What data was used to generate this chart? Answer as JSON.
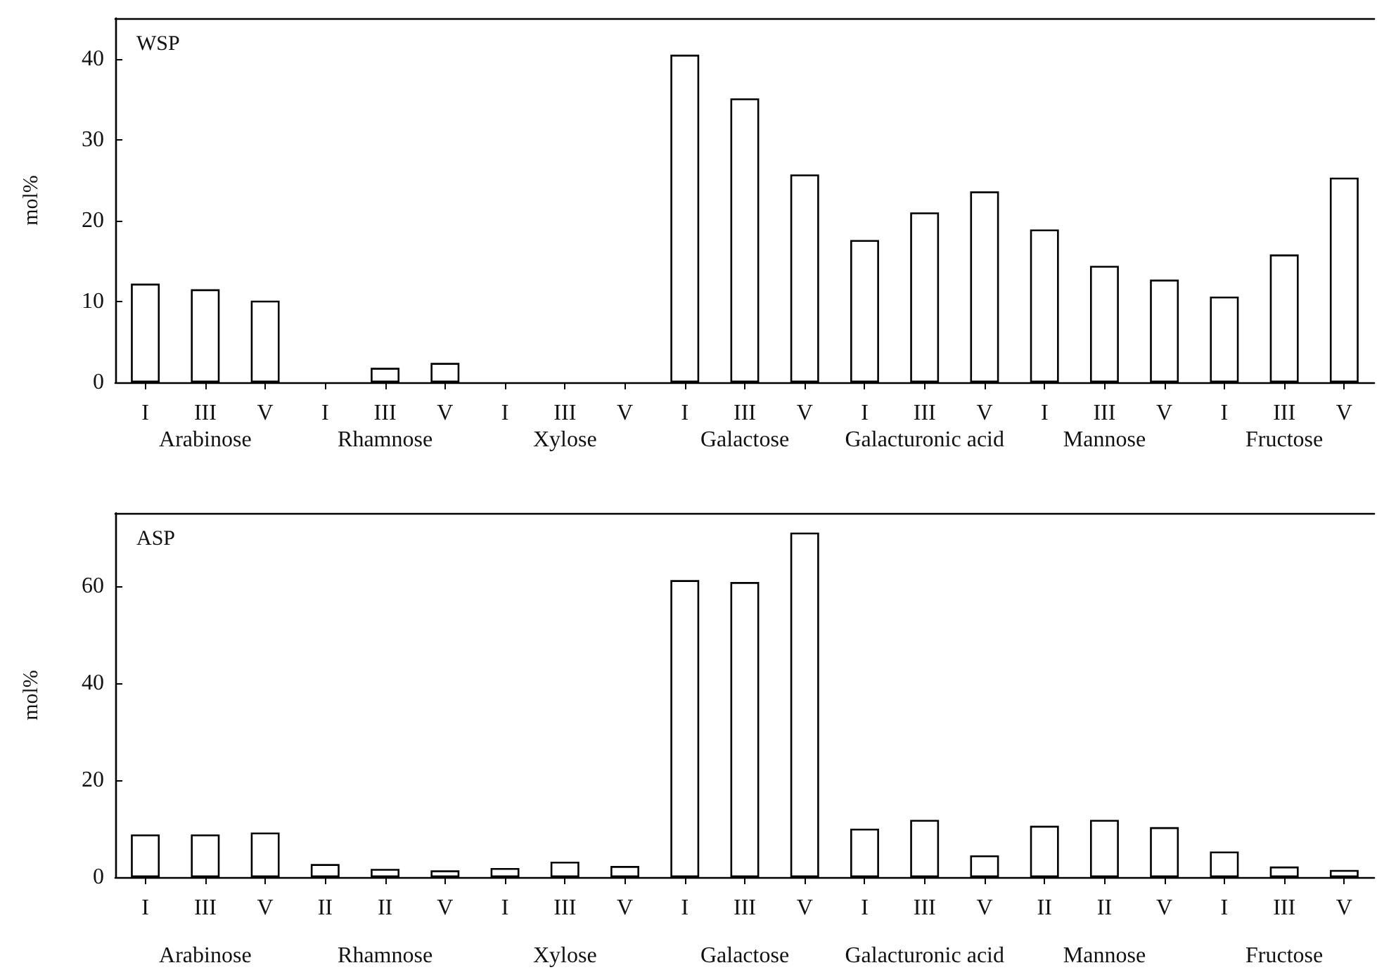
{
  "chart_data": [
    {
      "type": "bar",
      "title": "WSP",
      "ylabel": "mol%",
      "categories": [
        "I",
        "III",
        "V",
        "I",
        "III",
        "V",
        "I",
        "III",
        "V",
        "I",
        "III",
        "V",
        "I",
        "III",
        "V",
        "I",
        "III",
        "V",
        "I",
        "III",
        "V"
      ],
      "values": [
        12.2,
        11.5,
        10.1,
        0,
        1.8,
        2.4,
        0,
        0,
        0,
        40.5,
        35.1,
        25.7,
        17.6,
        21.0,
        23.6,
        18.9,
        14.4,
        12.7,
        10.6,
        15.8,
        25.3
      ],
      "color": "#ffffff",
      "ylim": [
        0,
        45
      ],
      "yticks": [
        0,
        10,
        20,
        30,
        40
      ],
      "annotations": [
        "Arabinose",
        "Rhamnose",
        "Xylose",
        "Galactose",
        "Galacturonic acid",
        "Mannose",
        "Fructose"
      ]
    },
    {
      "type": "bar",
      "title": "ASP",
      "ylabel": "mol%",
      "categories": [
        "I",
        "III",
        "V",
        "II",
        "II",
        "V",
        "I",
        "III",
        "V",
        "I",
        "III",
        "V",
        "I",
        "III",
        "V",
        "II",
        "II",
        "V",
        "I",
        "III",
        "V"
      ],
      "values": [
        8.8,
        8.8,
        9.2,
        2.7,
        1.7,
        1.4,
        1.9,
        3.2,
        2.3,
        61.2,
        60.8,
        71.0,
        10.0,
        11.8,
        4.5,
        10.6,
        11.8,
        10.3,
        5.3,
        2.2,
        1.5
      ],
      "color": "#ffffff",
      "ylim": [
        0,
        75
      ],
      "yticks": [
        0,
        20,
        40,
        60
      ],
      "annotations": [
        "Arabinose",
        "Rhamnose",
        "Xylose",
        "Galactose",
        "Galacturonic acid",
        "Mannose",
        "Fructose"
      ]
    }
  ]
}
